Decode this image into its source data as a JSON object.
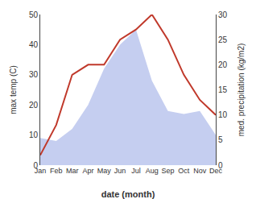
{
  "chart_data": {
    "type": "line",
    "categories": [
      "Jan",
      "Feb",
      "Mar",
      "Apr",
      "May",
      "Jun",
      "Jul",
      "Aug",
      "Sep",
      "Oct",
      "Nov",
      "Dec"
    ],
    "series": [
      {
        "type": "area",
        "color": "#c5cef0",
        "values": [
          9,
          8,
          12,
          20,
          32,
          40,
          45,
          28,
          18,
          17,
          18,
          10
        ]
      },
      {
        "type": "line",
        "color": "#c0392b",
        "axis": "y2",
        "values": [
          2,
          8,
          18,
          20,
          20,
          25,
          27,
          30,
          25,
          18,
          13,
          10
        ]
      }
    ],
    "xlabel": "date (month)",
    "ylabel": "max temp (C)",
    "y2label": "med. precipitation (kg/m2)",
    "ylim": [
      0,
      50
    ],
    "yticks": [
      0,
      10,
      20,
      30,
      40,
      50
    ],
    "y2lim": [
      0,
      30
    ],
    "y2ticks": [
      0,
      5,
      10,
      15,
      20,
      25,
      30
    ],
    "grid": false
  }
}
